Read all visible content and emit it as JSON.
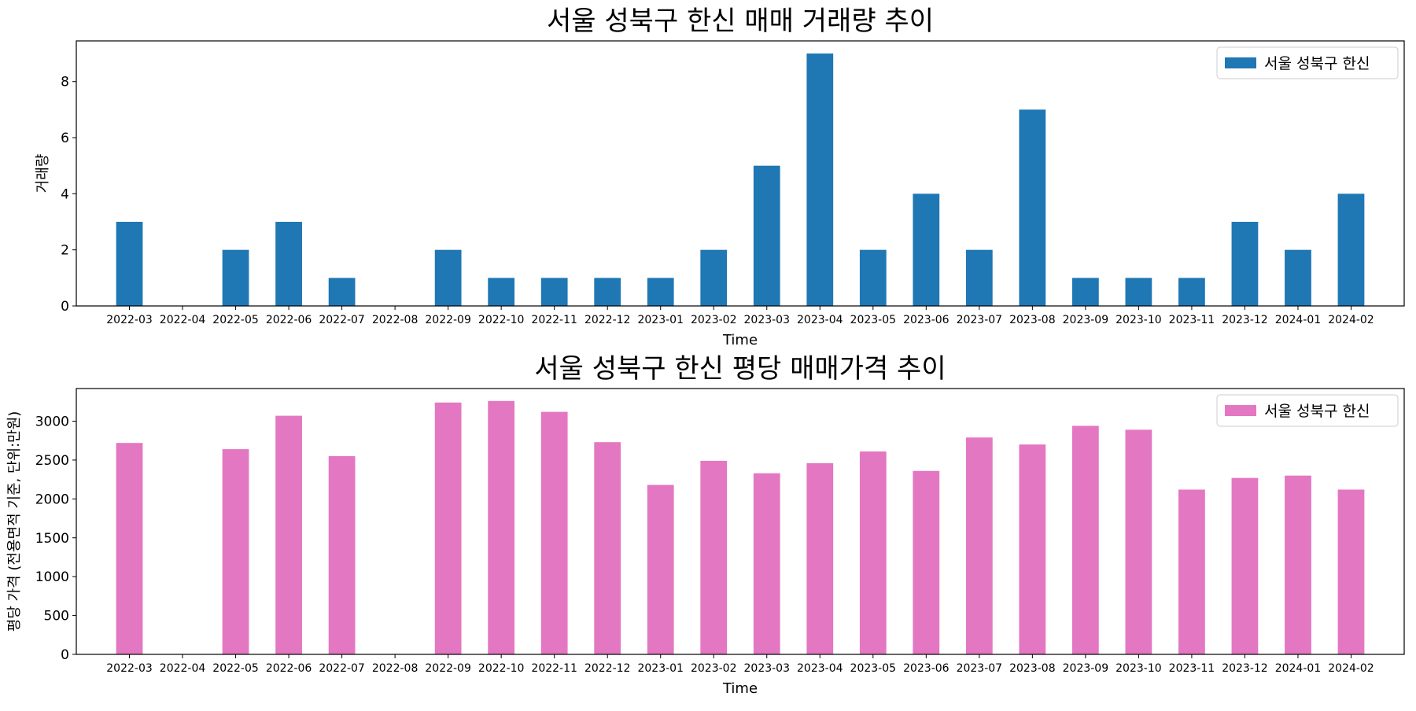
{
  "colors": {
    "volume_bar": "#1f77b4",
    "price_bar": "#e377c2",
    "axis": "#000000",
    "legend_border": "#cccccc"
  },
  "chart_data": [
    {
      "type": "bar",
      "title": "서울 성북구 한신 매매 거래량 추이",
      "xlabel": "Time",
      "ylabel": "거래량",
      "categories": [
        "2022-03",
        "2022-04",
        "2022-05",
        "2022-06",
        "2022-07",
        "2022-08",
        "2022-09",
        "2022-10",
        "2022-11",
        "2022-12",
        "2023-01",
        "2023-02",
        "2023-03",
        "2023-04",
        "2023-05",
        "2023-06",
        "2023-07",
        "2023-08",
        "2023-09",
        "2023-10",
        "2023-11",
        "2023-12",
        "2024-01",
        "2024-02"
      ],
      "series": [
        {
          "name": "서울 성북구 한신",
          "values": [
            3,
            0,
            2,
            3,
            1,
            0,
            2,
            1,
            1,
            1,
            1,
            2,
            5,
            9,
            2,
            4,
            2,
            7,
            1,
            1,
            1,
            3,
            2,
            4
          ]
        }
      ],
      "ylim": [
        0,
        9.45
      ],
      "yticks": [
        0,
        2,
        4,
        6,
        8
      ],
      "grid": false,
      "legend": "top-right"
    },
    {
      "type": "bar",
      "title": "서울 성북구 한신 평당 매매가격 추이",
      "xlabel": "Time",
      "ylabel": "평당 가격 (전용면적 기준, 단위:만원)",
      "categories": [
        "2022-03",
        "2022-04",
        "2022-05",
        "2022-06",
        "2022-07",
        "2022-08",
        "2022-09",
        "2022-10",
        "2022-11",
        "2022-12",
        "2023-01",
        "2023-02",
        "2023-03",
        "2023-04",
        "2023-05",
        "2023-06",
        "2023-07",
        "2023-08",
        "2023-09",
        "2023-10",
        "2023-11",
        "2023-12",
        "2024-01",
        "2024-02"
      ],
      "series": [
        {
          "name": "서울 성북구 한신",
          "values": [
            2720,
            0,
            2640,
            3070,
            2550,
            0,
            3240,
            3260,
            3120,
            2730,
            2180,
            2490,
            2330,
            2460,
            2610,
            2360,
            2790,
            2700,
            2940,
            2890,
            2120,
            2270,
            2300,
            2120
          ]
        }
      ],
      "ylim": [
        0,
        3420
      ],
      "yticks": [
        0,
        500,
        1000,
        1500,
        2000,
        2500,
        3000
      ],
      "grid": false,
      "legend": "top-right"
    }
  ]
}
